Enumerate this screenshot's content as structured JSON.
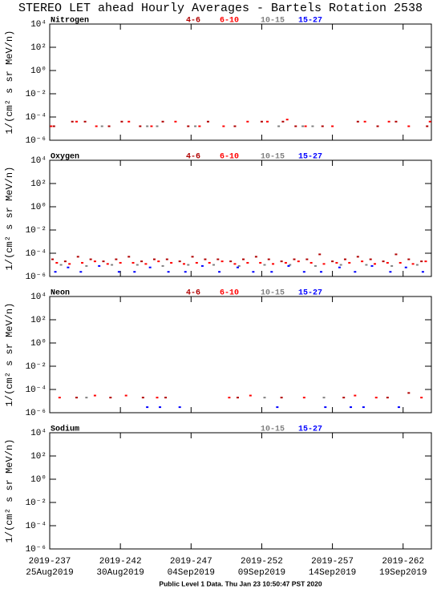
{
  "title": "STEREO LET ahead Hourly Averages - Bartels Rotation 2538",
  "footer": "Public Level 1 Data. Thu Jan 23 10:50:47 PST 2020",
  "chart_data": [
    {
      "type": "scatter",
      "title": "Nitrogen",
      "ylabel": "1/(cm² s sr MeV/n)",
      "log_y": true,
      "xlim": [
        237,
        264
      ],
      "xticks": [
        237,
        242,
        247,
        252,
        257,
        262
      ],
      "ylim": [
        1e-06,
        10000
      ],
      "yticks": [
        {
          "value": 1e-06,
          "label": "10⁻⁶"
        },
        {
          "value": 0.0001,
          "label": "10⁻⁴"
        },
        {
          "value": 0.01,
          "label": "10⁻²"
        },
        {
          "value": 1,
          "label": "10⁰"
        },
        {
          "value": 100,
          "label": "10²"
        },
        {
          "value": 10000,
          "label": "10⁴"
        }
      ],
      "series": [
        {
          "name": "4-6",
          "color": "#b00000",
          "x": [
            237.3,
            238.6,
            239.5,
            241.2,
            242.1,
            243.4,
            245.0,
            246.8,
            248.2,
            250.1,
            252.0,
            253.5,
            254.4,
            256.3,
            258.8,
            260.2,
            261.5,
            263.7
          ],
          "values": [
            1.6e-05,
            4e-05,
            4e-05,
            1.6e-05,
            4e-05,
            1.6e-05,
            4e-05,
            1.6e-05,
            4e-05,
            1.6e-05,
            4e-05,
            4e-05,
            1.6e-05,
            1.6e-05,
            4e-05,
            1.6e-05,
            4e-05,
            1.6e-05
          ]
        },
        {
          "name": "6-10",
          "color": "#ff0000",
          "x": [
            237.1,
            238.9,
            240.3,
            242.6,
            244.2,
            245.9,
            247.6,
            249.3,
            251.0,
            252.4,
            253.8,
            255.1,
            257.0,
            259.3,
            261.0,
            262.4,
            263.9
          ],
          "values": [
            1.6e-05,
            4e-05,
            1.6e-05,
            4e-05,
            1.6e-05,
            4e-05,
            1.6e-05,
            1.6e-05,
            4e-05,
            4e-05,
            6e-05,
            1.6e-05,
            1.6e-05,
            4e-05,
            4e-05,
            1.6e-05,
            4e-05
          ]
        },
        {
          "name": "10-15",
          "color": "#808080",
          "x": [
            240.7,
            243.9,
            244.6,
            247.3,
            253.2,
            254.9,
            255.6
          ],
          "values": [
            1.6e-05,
            1.6e-05,
            1.6e-05,
            1.6e-05,
            1.6e-05,
            1.6e-05,
            1.6e-05
          ]
        },
        {
          "name": "15-27",
          "color": "#0000ff",
          "x": [],
          "values": []
        }
      ]
    },
    {
      "type": "scatter",
      "title": "Oxygen",
      "ylabel": "1/(cm² s sr MeV/n)",
      "log_y": true,
      "xlim": [
        237,
        264
      ],
      "xticks": [
        237,
        242,
        247,
        252,
        257,
        262
      ],
      "ylim": [
        1e-06,
        10000
      ],
      "yticks": [
        {
          "value": 1e-06,
          "label": "10⁻⁶"
        },
        {
          "value": 0.0001,
          "label": "10⁻⁴"
        },
        {
          "value": 0.01,
          "label": "10⁻²"
        },
        {
          "value": 1,
          "label": "10⁰"
        },
        {
          "value": 100,
          "label": "10²"
        },
        {
          "value": 10000,
          "label": "10⁴"
        }
      ],
      "series": [
        {
          "name": "4-6",
          "color": "#b00000",
          "x": [
            237.2,
            238.1,
            239.0,
            239.9,
            240.8,
            241.7,
            242.6,
            243.5,
            244.4,
            245.3,
            246.2,
            247.1,
            248.0,
            248.9,
            249.8,
            250.7,
            251.6,
            252.5,
            253.4,
            254.3,
            255.2,
            256.1,
            257.0,
            257.9,
            258.8,
            259.7,
            260.6,
            261.5,
            262.4,
            263.3
          ],
          "values": [
            3e-05,
            2e-05,
            5e-05,
            3e-05,
            2e-05,
            3e-05,
            5e-05,
            2e-05,
            3e-05,
            3e-05,
            2e-05,
            5e-05,
            3e-05,
            3e-05,
            2e-05,
            3e-05,
            5e-05,
            3e-05,
            2e-05,
            3e-05,
            3e-05,
            8e-05,
            2e-05,
            3e-05,
            5e-05,
            3e-05,
            2e-05,
            8e-05,
            3e-05,
            2e-05
          ]
        },
        {
          "name": "6-10",
          "color": "#ff0000",
          "x": [
            237.5,
            238.4,
            239.3,
            240.2,
            241.1,
            242.0,
            242.9,
            243.8,
            244.7,
            245.6,
            246.5,
            247.4,
            248.3,
            249.2,
            250.1,
            251.0,
            251.9,
            252.8,
            253.7,
            254.6,
            255.5,
            256.4,
            257.3,
            258.2,
            259.1,
            260.0,
            260.9,
            261.8,
            262.7,
            263.6
          ],
          "values": [
            1.5e-05,
            1.2e-05,
            1.5e-05,
            2e-05,
            1.2e-05,
            1.5e-05,
            1.5e-05,
            1.2e-05,
            2e-05,
            1.5e-05,
            1.2e-05,
            1.5e-05,
            1.5e-05,
            2e-05,
            1.2e-05,
            1.5e-05,
            1.5e-05,
            1.2e-05,
            1.5e-05,
            2e-05,
            1.5e-05,
            1.2e-05,
            1.5e-05,
            1.5e-05,
            2e-05,
            1.2e-05,
            1.5e-05,
            1.5e-05,
            1.2e-05,
            2e-05
          ]
        },
        {
          "name": "10-15",
          "color": "#808080",
          "x": [
            237.8,
            239.6,
            241.4,
            243.2,
            245.0,
            246.8,
            248.6,
            250.4,
            252.2,
            254.0,
            255.8,
            257.6,
            259.4,
            261.2,
            263.0
          ],
          "values": [
            1e-05,
            8e-06,
            1e-05,
            1e-05,
            8e-06,
            1e-05,
            1e-05,
            8e-06,
            1e-05,
            1e-05,
            8e-06,
            1e-05,
            1e-05,
            8e-06,
            1e-05
          ]
        },
        {
          "name": "15-27",
          "color": "#0000ff",
          "x": [
            237.4,
            238.3,
            239.2,
            240.5,
            241.9,
            243.0,
            244.1,
            245.4,
            246.6,
            247.8,
            249.0,
            250.3,
            251.4,
            252.7,
            253.9,
            255.0,
            256.2,
            257.5,
            258.6,
            259.8,
            261.1,
            262.2,
            263.4
          ],
          "values": [
            2.5e-06,
            6e-06,
            2.5e-06,
            8e-06,
            2.5e-06,
            2.5e-06,
            6e-06,
            2.5e-06,
            2.5e-06,
            8e-06,
            2.5e-06,
            6e-06,
            2.5e-06,
            2.5e-06,
            8e-06,
            2.5e-06,
            2.5e-06,
            6e-06,
            2.5e-06,
            8e-06,
            2.5e-06,
            6e-06,
            2.5e-06
          ]
        }
      ]
    },
    {
      "type": "scatter",
      "title": "Neon",
      "ylabel": "1/(cm² s sr MeV/n)",
      "log_y": true,
      "xlim": [
        237,
        264
      ],
      "xticks": [
        237,
        242,
        247,
        252,
        257,
        262
      ],
      "ylim": [
        1e-06,
        10000
      ],
      "yticks": [
        {
          "value": 1e-06,
          "label": "10⁻⁶"
        },
        {
          "value": 0.0001,
          "label": "10⁻⁴"
        },
        {
          "value": 0.01,
          "label": "10⁻²"
        },
        {
          "value": 1,
          "label": "10⁰"
        },
        {
          "value": 100,
          "label": "10²"
        },
        {
          "value": 10000,
          "label": "10⁴"
        }
      ],
      "series": [
        {
          "name": "4-6",
          "color": "#b00000",
          "x": [
            238.9,
            241.3,
            243.6,
            245.2,
            250.3,
            253.4,
            257.8,
            260.9,
            262.4
          ],
          "values": [
            2e-05,
            2e-05,
            2e-05,
            2e-05,
            2e-05,
            2e-05,
            2e-05,
            2e-05,
            5e-05
          ]
        },
        {
          "name": "6-10",
          "color": "#ff0000",
          "x": [
            237.7,
            240.2,
            242.4,
            244.6,
            249.7,
            251.2,
            255.0,
            258.6,
            260.1,
            263.3
          ],
          "values": [
            2e-05,
            3e-05,
            3e-05,
            2e-05,
            2e-05,
            3e-05,
            2e-05,
            3e-05,
            2e-05,
            2e-05
          ]
        },
        {
          "name": "10-15",
          "color": "#808080",
          "x": [
            239.6,
            252.2,
            256.4
          ],
          "values": [
            2e-05,
            2e-05,
            2e-05
          ]
        },
        {
          "name": "15-27",
          "color": "#0000ff",
          "x": [
            243.9,
            244.8,
            246.2,
            253.1,
            256.5,
            258.3,
            259.2,
            261.7
          ],
          "values": [
            3e-06,
            3e-06,
            3e-06,
            3e-06,
            3e-06,
            3e-06,
            3e-06,
            3e-06
          ]
        }
      ]
    },
    {
      "type": "scatter",
      "title": "Sodium",
      "ylabel": "1/(cm² s sr MeV/n)",
      "log_y": true,
      "xlim": [
        237,
        264
      ],
      "xticks": [
        237,
        242,
        247,
        252,
        257,
        262
      ],
      "xtick_labels": [
        "2019-237",
        "2019-242",
        "2019-247",
        "2019-252",
        "2019-257",
        "2019-262"
      ],
      "xtick_dates": [
        "25Aug2019",
        "30Aug2019",
        "04Sep2019",
        "09Sep2019",
        "14Sep2019",
        "19Sep2019"
      ],
      "ylim": [
        1e-06,
        10000
      ],
      "yticks": [
        {
          "value": 1e-06,
          "label": "10⁻⁶"
        },
        {
          "value": 0.0001,
          "label": "10⁻⁴"
        },
        {
          "value": 0.01,
          "label": "10⁻²"
        },
        {
          "value": 1,
          "label": "10⁰"
        },
        {
          "value": 100,
          "label": "10²"
        },
        {
          "value": 10000,
          "label": "10⁴"
        }
      ],
      "series": [
        {
          "name": "10-15",
          "color": "#808080",
          "x": [],
          "values": []
        },
        {
          "name": "15-27",
          "color": "#0000ff",
          "x": [],
          "values": []
        }
      ]
    }
  ]
}
